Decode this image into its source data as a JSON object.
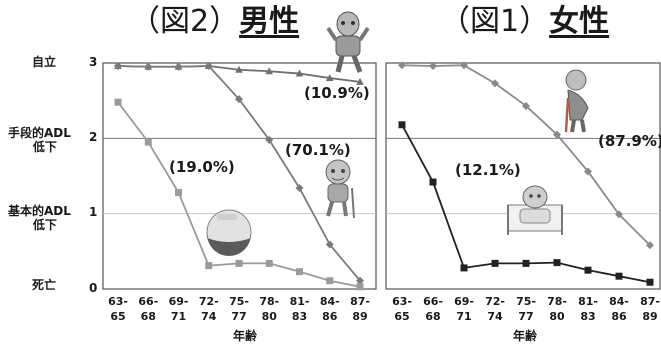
{
  "titles": {
    "left_fig": "（図2）",
    "left_sex": "男性",
    "right_fig": "（図1）",
    "right_sex": "女性"
  },
  "y_labels": {
    "independent": "自立",
    "iadl_line1": "手段的ADL",
    "iadl_line2": "低下",
    "badl_line1": "基本的ADL",
    "badl_line2": "低下",
    "death": "死亡"
  },
  "xlabel": "年齢",
  "chart_data": [
    {
      "type": "line",
      "panel": "男性",
      "categories": [
        [
          "63-",
          "65"
        ],
        [
          "66-",
          "68"
        ],
        [
          "69-",
          "71"
        ],
        [
          "72-",
          "74"
        ],
        [
          "75-",
          "77"
        ],
        [
          "78-",
          "80"
        ],
        [
          "81-",
          "83"
        ],
        [
          "84-",
          "86"
        ],
        [
          "87-",
          "89"
        ]
      ],
      "ylim": [
        0,
        3
      ],
      "yticks": [
        0,
        1,
        2,
        3
      ],
      "xlabel": "年齢",
      "grid": true,
      "series": [
        {
          "values": [
            2.96,
            2.95,
            2.95,
            2.96,
            2.91,
            2.89,
            2.86,
            2.8,
            2.75
          ],
          "color": "#6f6f6f",
          "marker": "triangle"
        },
        {
          "values": [
            2.96,
            2.95,
            2.95,
            2.96,
            2.52,
            1.98,
            1.34,
            0.59,
            0.11
          ],
          "color": "#7a7a7a",
          "marker": "diamond"
        },
        {
          "values": [
            2.48,
            1.95,
            1.28,
            0.31,
            0.34,
            0.34,
            0.23,
            0.11,
            0.03
          ],
          "color": "#9a9a9a",
          "marker": "square"
        }
      ],
      "annotations": [
        "(10.9%)",
        "(70.1%)",
        "(19.0%)"
      ]
    },
    {
      "type": "line",
      "panel": "女性",
      "categories": [
        [
          "63-",
          "65"
        ],
        [
          "66-",
          "68"
        ],
        [
          "69-",
          "71"
        ],
        [
          "72-",
          "74"
        ],
        [
          "75-",
          "77"
        ],
        [
          "78-",
          "80"
        ],
        [
          "81-",
          "83"
        ],
        [
          "84-",
          "86"
        ],
        [
          "87-",
          "89"
        ]
      ],
      "ylim": [
        0,
        3
      ],
      "yticks": [
        0,
        1,
        2,
        3
      ],
      "xlabel": "年齢",
      "grid": true,
      "series": [
        {
          "values": [
            2.97,
            2.96,
            2.97,
            2.73,
            2.43,
            2.05,
            1.56,
            0.99,
            0.58
          ],
          "color": "#8a8a8a",
          "marker": "diamond"
        },
        {
          "values": [
            2.18,
            1.42,
            0.28,
            0.34,
            0.34,
            0.35,
            0.25,
            0.17,
            0.09
          ],
          "color": "#222222",
          "marker": "square"
        }
      ],
      "annotations": [
        "(87.9%)",
        "(12.1%)"
      ]
    }
  ]
}
